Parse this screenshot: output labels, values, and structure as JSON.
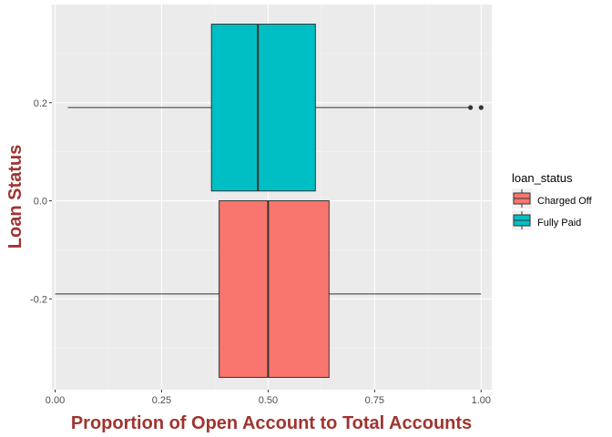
{
  "chart_data": {
    "type": "boxplot",
    "orientation": "horizontal",
    "xlabel": "Proportion of Open Account to Total Accounts",
    "ylabel": "Loan Status",
    "xlim": [
      -0.0075,
      1.025
    ],
    "ylim": [
      -0.385,
      0.4
    ],
    "x_ticks": [
      0.0,
      0.25,
      0.5,
      0.75,
      1.0
    ],
    "x_tick_labels": [
      "0.00",
      "0.25",
      "0.50",
      "0.75",
      "1.00"
    ],
    "y_ticks": [
      -0.2,
      0.0,
      0.2
    ],
    "y_tick_labels": [
      "-0.2",
      "0.0",
      "0.2"
    ],
    "grid": true,
    "legend": {
      "title": "loan_status",
      "position": "right",
      "entries": [
        "Charged Off",
        "Fully Paid"
      ]
    },
    "series": [
      {
        "name": "Charged Off",
        "color": "#F8766D",
        "y_range": [
          -0.36,
          0.0
        ],
        "y_center": -0.19,
        "whisker_low": 0.0,
        "q1": 0.385,
        "median": 0.5,
        "q3": 0.643,
        "whisker_high": 1.0,
        "outliers": []
      },
      {
        "name": "Fully Paid",
        "color": "#00BFC4",
        "y_range": [
          0.02,
          0.36
        ],
        "y_center": 0.19,
        "whisker_low": 0.03,
        "q1": 0.367,
        "median": 0.476,
        "q3": 0.611,
        "whisker_high": 0.97,
        "outliers": [
          0.975,
          1.0
        ]
      }
    ]
  }
}
